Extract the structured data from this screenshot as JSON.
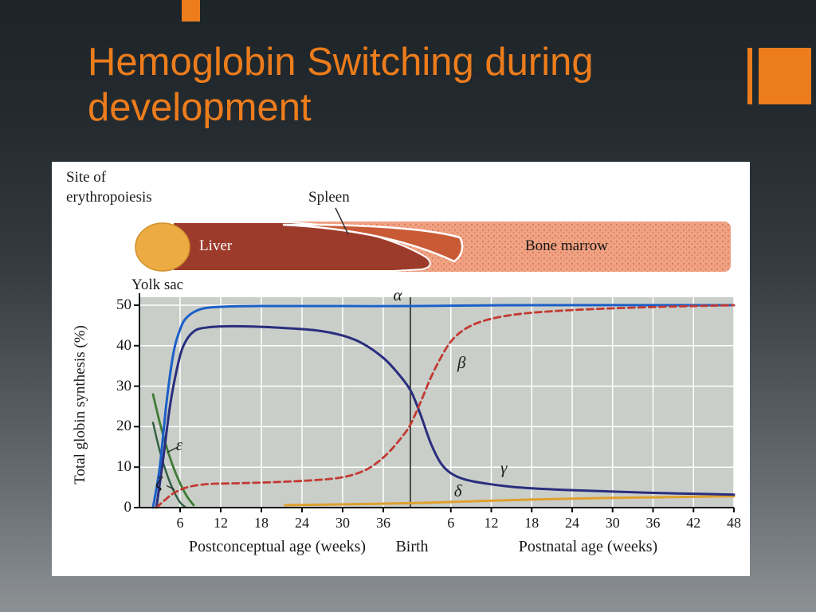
{
  "slide": {
    "title": "Hemoglobin Switching during development",
    "accent_color": "#EC7C1C"
  },
  "figure": {
    "site_line1": "Site of",
    "site_line2": "erythropoiesis",
    "regions": {
      "yolk_sac": {
        "label": "Yolk sac",
        "color": "#ECAC43"
      },
      "liver": {
        "label": "Liver",
        "color": "#9D3B2B"
      },
      "spleen": {
        "label": "Spleen",
        "color": "#C85A36"
      },
      "bone_marrow": {
        "label": "Bone marrow",
        "color": "#F0A284"
      }
    }
  },
  "chart_data": {
    "type": "line",
    "grid": true,
    "plot_bg": "#C9CEC9",
    "y_axis": {
      "label": "Total globin synthesis (%)",
      "ticks": [
        0,
        10,
        20,
        30,
        40,
        50
      ],
      "range": [
        0,
        50
      ]
    },
    "x_axis": {
      "fetal_label": "Postconceptual age (weeks)",
      "fetal_ticks": [
        6,
        12,
        18,
        24,
        30,
        36
      ],
      "birth_label": "Birth",
      "birth_week_postconceptual": 40,
      "postnatal_label": "Postnatal age (weeks)",
      "postnatal_ticks": [
        6,
        12,
        18,
        24,
        30,
        36,
        42,
        48
      ],
      "timeline_note": "series x = postconceptual weeks; birth at 40; postnatal week w plotted at 40+w"
    },
    "series": [
      {
        "name": "delta",
        "glyph": "δ",
        "color": "#DFA02F",
        "dash": false,
        "width": 3,
        "label_at": [
          47.3,
          4.2
        ],
        "points": [
          [
            21.5,
            0.6
          ],
          [
            30,
            0.8
          ],
          [
            40,
            1.1
          ],
          [
            48,
            1.5
          ],
          [
            58,
            2
          ],
          [
            70,
            2.4
          ],
          [
            88,
            2.8
          ]
        ]
      },
      {
        "name": "zeta",
        "glyph": "ζ",
        "color": "#2F5E41",
        "dash": false,
        "width": 2.4,
        "label_at": [
          3.2,
          6.2
        ],
        "points": [
          [
            2,
            21
          ],
          [
            3,
            14
          ],
          [
            4,
            8.5
          ],
          [
            5,
            4.3
          ],
          [
            6,
            1.3
          ],
          [
            6.8,
            0.1
          ]
        ]
      },
      {
        "name": "epsilon",
        "glyph": "ε",
        "color": "#3E7C35",
        "dash": false,
        "width": 2.8,
        "label_at": [
          6.2,
          15.6
        ],
        "points": [
          [
            2,
            28
          ],
          [
            3,
            21
          ],
          [
            4,
            15
          ],
          [
            5,
            10
          ],
          [
            6,
            6
          ],
          [
            7,
            2.8
          ],
          [
            8,
            0.6
          ]
        ]
      },
      {
        "name": "gamma",
        "glyph": "γ",
        "color": "#2A2E7E",
        "dash": false,
        "width": 3,
        "label_at": [
          54.2,
          9.8
        ],
        "points": [
          [
            2.5,
            0
          ],
          [
            3.5,
            12
          ],
          [
            4.5,
            25
          ],
          [
            5.5,
            34
          ],
          [
            6.5,
            40
          ],
          [
            8,
            43.5
          ],
          [
            10,
            44.5
          ],
          [
            14,
            44.8
          ],
          [
            20,
            44.5
          ],
          [
            26,
            43.8
          ],
          [
            30,
            42.5
          ],
          [
            33,
            40.5
          ],
          [
            36,
            37
          ],
          [
            38,
            33.5
          ],
          [
            40,
            29
          ],
          [
            41.5,
            23
          ],
          [
            43,
            16
          ],
          [
            44.5,
            11
          ],
          [
            46,
            8.5
          ],
          [
            48,
            7
          ],
          [
            51,
            6
          ],
          [
            56,
            5
          ],
          [
            64,
            4.3
          ],
          [
            75,
            3.7
          ],
          [
            88,
            3.2
          ]
        ]
      },
      {
        "name": "alpha",
        "glyph": "α",
        "color": "#1B5FC8",
        "dash": false,
        "width": 3,
        "label_at": [
          38.3,
          52.6
        ],
        "points": [
          [
            2,
            0
          ],
          [
            3,
            10
          ],
          [
            4,
            26
          ],
          [
            5,
            38
          ],
          [
            6,
            44
          ],
          [
            7,
            47
          ],
          [
            9,
            49
          ],
          [
            12,
            49.6
          ],
          [
            18,
            49.8
          ],
          [
            30,
            49.8
          ],
          [
            40,
            49.8
          ],
          [
            55,
            50
          ],
          [
            88,
            50
          ]
        ]
      },
      {
        "name": "beta",
        "glyph": "β",
        "color": "#C23A32",
        "dash": true,
        "width": 2.8,
        "label_at": [
          47.8,
          35.8
        ],
        "points": [
          [
            2.5,
            0
          ],
          [
            3.5,
            1.5
          ],
          [
            5,
            3.5
          ],
          [
            7,
            5
          ],
          [
            10,
            5.8
          ],
          [
            14,
            6
          ],
          [
            20,
            6.3
          ],
          [
            26,
            6.8
          ],
          [
            30,
            7.5
          ],
          [
            33,
            9
          ],
          [
            35,
            11
          ],
          [
            37,
            14
          ],
          [
            39,
            18
          ],
          [
            40,
            20.5
          ],
          [
            41.5,
            26
          ],
          [
            43,
            32
          ],
          [
            44.5,
            37
          ],
          [
            46,
            41
          ],
          [
            48,
            44
          ],
          [
            51,
            46.2
          ],
          [
            56,
            47.8
          ],
          [
            64,
            48.8
          ],
          [
            75,
            49.5
          ],
          [
            88,
            50
          ]
        ]
      }
    ]
  }
}
